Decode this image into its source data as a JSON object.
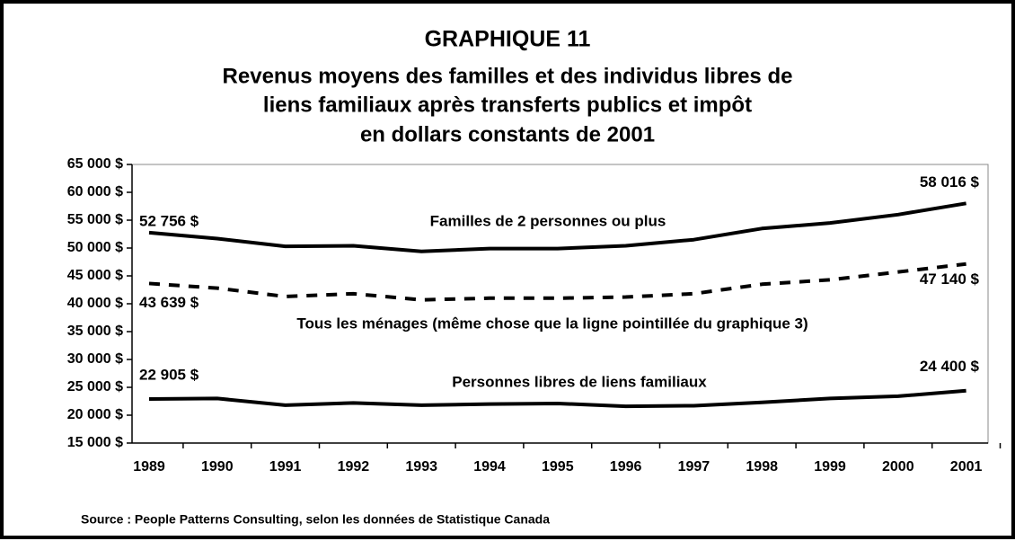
{
  "chart_data": {
    "type": "line",
    "title": "GRAPHIQUE 11",
    "subtitle": [
      "Revenus moyens des familles et des individus libres de",
      "liens familiaux après transferts publics et impôt",
      "en dollars constants de 2001"
    ],
    "source": "Source : People Patterns Consulting, selon les données de Statistique Canada",
    "categories": [
      "1989",
      "1990",
      "1991",
      "1992",
      "1993",
      "1994",
      "1995",
      "1996",
      "1997",
      "1998",
      "1999",
      "2000",
      "2001"
    ],
    "series": [
      {
        "name": "Familles de 2 personnes ou plus",
        "color": "#000000",
        "dashed": false,
        "values": [
          52756,
          51700,
          50300,
          50400,
          49400,
          49900,
          49900,
          50400,
          51500,
          53500,
          54500,
          56000,
          58016
        ],
        "value_labels": [
          "52 756 $",
          null,
          null,
          null,
          null,
          null,
          null,
          null,
          null,
          null,
          null,
          null,
          "58 016 $"
        ]
      },
      {
        "name": "Tous les ménages (même chose que la ligne pointillée du graphique 3)",
        "color": "#000000",
        "dashed": true,
        "values": [
          43639,
          42800,
          41300,
          41800,
          40700,
          41000,
          41000,
          41200,
          41800,
          43500,
          44300,
          45700,
          47140
        ],
        "value_labels": [
          "43 639 $",
          null,
          null,
          null,
          null,
          null,
          null,
          null,
          null,
          null,
          null,
          null,
          "47 140 $"
        ]
      },
      {
        "name": "Personnes libres de liens familiaux",
        "color": "#000000",
        "dashed": false,
        "values": [
          22905,
          23000,
          21800,
          22200,
          21800,
          22000,
          22100,
          21600,
          21700,
          22300,
          23000,
          23400,
          24400
        ],
        "value_labels": [
          "22 905 $",
          null,
          null,
          null,
          null,
          null,
          null,
          null,
          null,
          null,
          null,
          null,
          "24 400 $"
        ]
      }
    ],
    "ylim": [
      15000,
      65000
    ],
    "yticks": [
      {
        "value": 15000,
        "label": "15 000 $"
      },
      {
        "value": 20000,
        "label": "20 000 $"
      },
      {
        "value": 25000,
        "label": "25 000 $"
      },
      {
        "value": 30000,
        "label": "30 000 $"
      },
      {
        "value": 35000,
        "label": "35 000 $"
      },
      {
        "value": 40000,
        "label": "40 000 $"
      },
      {
        "value": 45000,
        "label": "45 000 $"
      },
      {
        "value": 50000,
        "label": "50 000 $"
      },
      {
        "value": 55000,
        "label": "55 000 $"
      },
      {
        "value": 60000,
        "label": "60 000 $"
      },
      {
        "value": 65000,
        "label": "65 000 $"
      }
    ],
    "grid": false
  }
}
